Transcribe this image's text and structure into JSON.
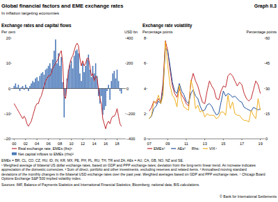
{
  "title": "Global financial factors and EME exchange rates",
  "graph_label": "Graph II.3",
  "subtitle": "In inflation targeting economies",
  "chart_data": [
    {
      "type": "line",
      "title": "Exchange rates and capital flows",
      "y_label": "Per cent",
      "y2_label": "USD bn",
      "grid": false,
      "x": [
        2000,
        2000.25,
        2000.5,
        2000.75,
        2001,
        2001.25,
        2001.5,
        2001.75,
        2002,
        2002.25,
        2002.5,
        2002.75,
        2003,
        2003.25,
        2003.5,
        2003.75,
        2004,
        2004.25,
        2004.5,
        2004.75,
        2005,
        2005.25,
        2005.5,
        2005.75,
        2006,
        2006.25,
        2006.5,
        2006.75,
        2007,
        2007.25,
        2007.5,
        2007.75,
        2008,
        2008.25,
        2008.5,
        2008.75,
        2009,
        2009.25,
        2009.5,
        2009.75,
        2010,
        2010.25,
        2010.5,
        2010.75,
        2011,
        2011.25,
        2011.5,
        2011.75,
        2012,
        2012.25,
        2012.5,
        2012.75,
        2013,
        2013.25,
        2013.5,
        2013.75,
        2014,
        2014.25,
        2014.5,
        2014.75,
        2015,
        2015.25,
        2015.5,
        2015.75,
        2016,
        2016.25,
        2016.5,
        2016.75,
        2017,
        2017.25,
        2017.5,
        2017.75,
        2018,
        2018.25,
        2018.5,
        2018.75
      ],
      "xlim": [
        1999.6,
        2019.4
      ],
      "xticks": [
        {
          "value": 2000,
          "label": "00"
        },
        {
          "value": 2002,
          "label": "02"
        },
        {
          "value": 2004,
          "label": "04"
        },
        {
          "value": 2006,
          "label": "06"
        },
        {
          "value": 2008,
          "label": "08"
        },
        {
          "value": 2010,
          "label": "10"
        },
        {
          "value": 2012,
          "label": "12"
        },
        {
          "value": 2014,
          "label": "14"
        },
        {
          "value": 2016,
          "label": "16"
        },
        {
          "value": 2018,
          "label": "18"
        }
      ],
      "ylim": [
        -20,
        20
      ],
      "yticks": [
        {
          "value": -20,
          "label": "–20"
        },
        {
          "value": -10,
          "label": "–10"
        },
        0,
        10,
        20
      ],
      "y2lim": [
        -400,
        400
      ],
      "y2ticks": [
        {
          "value": -400,
          "label": "–400"
        },
        {
          "value": -200,
          "label": "–200"
        },
        0,
        200,
        400
      ],
      "series": [
        {
          "name": "Real exchange rate, EMEs (lhs)¹",
          "type": "line",
          "axis": "y",
          "color": "#c1272d",
          "values": [
            -6,
            -7,
            -8,
            -9,
            -10,
            -11,
            -12,
            -11,
            -12,
            -14,
            -15,
            -14,
            -13,
            -11,
            -9,
            -7,
            -6,
            -6,
            -4,
            -3,
            -1,
            1,
            3,
            4,
            5,
            5,
            6,
            8,
            9,
            10,
            11,
            12,
            14,
            15,
            10,
            -3,
            -4,
            2,
            7,
            10,
            12,
            13,
            15,
            17,
            18,
            17,
            12,
            9,
            11,
            9,
            10,
            12,
            12,
            9,
            5,
            6,
            3,
            5,
            4,
            0,
            -4,
            -6,
            -12,
            -14,
            -16,
            -14,
            -13,
            -14,
            -12,
            -11,
            -11,
            -10,
            -8,
            -11,
            -14,
            -15
          ]
        },
        {
          "name": "Net capital inflows to EMEs (rhs)²",
          "type": "bar",
          "axis": "y2",
          "color": "#4a78b8",
          "values": [
            20,
            40,
            10,
            30,
            -20,
            10,
            20,
            -10,
            30,
            10,
            -20,
            20,
            40,
            60,
            50,
            80,
            90,
            60,
            100,
            120,
            130,
            110,
            150,
            160,
            180,
            200,
            160,
            230,
            300,
            390,
            200,
            280,
            180,
            250,
            50,
            -230,
            -60,
            80,
            150,
            190,
            220,
            160,
            260,
            300,
            310,
            280,
            120,
            60,
            200,
            130,
            180,
            230,
            270,
            150,
            90,
            180,
            120,
            200,
            100,
            -60,
            -120,
            -60,
            -210,
            -170,
            -140,
            -20,
            30,
            -90,
            60,
            120,
            140,
            80,
            150,
            60,
            -20,
            -40
          ]
        }
      ]
    },
    {
      "type": "line",
      "title": "Exchange rate volatility",
      "y_label": "Percentage points",
      "y2_label": "Percentage points",
      "grid": false,
      "x": [
        2007,
        2007.25,
        2007.5,
        2007.75,
        2008,
        2008.25,
        2008.5,
        2008.75,
        2009,
        2009.25,
        2009.5,
        2009.75,
        2010,
        2010.25,
        2010.5,
        2010.75,
        2011,
        2011.25,
        2011.5,
        2011.75,
        2012,
        2012.25,
        2012.5,
        2012.75,
        2013,
        2013.25,
        2013.5,
        2013.75,
        2014,
        2014.25,
        2014.5,
        2014.75,
        2015,
        2015.25,
        2015.5,
        2015.75,
        2016,
        2016.25,
        2016.5,
        2016.75,
        2017,
        2017.25,
        2017.5,
        2017.75,
        2018,
        2018.25,
        2018.5,
        2018.75,
        2019
      ],
      "xlim": [
        2006.8,
        2019.4
      ],
      "xticks": [
        {
          "value": 2007,
          "label": "07"
        },
        {
          "value": 2009,
          "label": "09"
        },
        {
          "value": 2011,
          "label": "11"
        },
        {
          "value": 2013,
          "label": "13"
        },
        {
          "value": 2015,
          "label": "15"
        },
        {
          "value": 2017,
          "label": "17"
        },
        {
          "value": 2019,
          "label": "19"
        }
      ],
      "ylim": [
        0,
        8
      ],
      "yticks": [
        0,
        2,
        4,
        6,
        8
      ],
      "y2lim": [
        0,
        60
      ],
      "y2ticks": [
        0,
        15,
        30,
        45,
        60
      ],
      "series": [
        {
          "name": "EMEs³",
          "type": "line",
          "axis": "y",
          "color": "#c1272d",
          "values": [
            2.2,
            2.5,
            3.0,
            2.8,
            3.2,
            2.9,
            4.5,
            7.8,
            7.0,
            5.5,
            4.2,
            3.6,
            3.3,
            4.0,
            3.5,
            3.2,
            2.8,
            2.6,
            4.5,
            5.2,
            4.6,
            4.2,
            3.5,
            2.9,
            2.8,
            3.8,
            4.6,
            4.2,
            3.9,
            3.2,
            3.1,
            3.8,
            4.2,
            4.1,
            5.0,
            5.2,
            5.0,
            4.6,
            4.2,
            4.5,
            4.3,
            3.6,
            3.2,
            3.0,
            3.2,
            3.9,
            4.6,
            4.3,
            3.6
          ]
        },
        {
          "name": "AEs³",
          "type": "line",
          "axis": "y",
          "color": "#1f4e9c",
          "values": [
            1.6,
            1.8,
            2.4,
            2.6,
            3.0,
            2.8,
            4.0,
            7.2,
            7.0,
            5.8,
            4.5,
            3.8,
            3.6,
            4.4,
            3.8,
            3.5,
            3.0,
            2.8,
            3.6,
            3.9,
            3.4,
            3.2,
            2.6,
            2.2,
            2.3,
            2.7,
            2.8,
            2.6,
            2.2,
            1.9,
            2.0,
            2.9,
            3.8,
            3.4,
            3.6,
            3.5,
            3.3,
            3.4,
            3.2,
            3.0,
            2.9,
            2.5,
            2.4,
            2.3,
            2.2,
            2.5,
            2.4,
            2.3,
            2.4
          ]
        },
        {
          "name": "VIX⁴",
          "legend_prefix": "Rhs:",
          "type": "line",
          "axis": "y2",
          "color": "#f0ad1c",
          "values": [
            12,
            14,
            22,
            22,
            26,
            21,
            26,
            58,
            44,
            32,
            26,
            24,
            19,
            32,
            23,
            19,
            18,
            17,
            35,
            30,
            18,
            20,
            16,
            17,
            13,
            15,
            14,
            14,
            14,
            12,
            13,
            16,
            16,
            14,
            26,
            18,
            22,
            15,
            14,
            14,
            12,
            11,
            11,
            10,
            17,
            14,
            12,
            24,
            17
          ]
        }
      ]
    }
  ],
  "notes": [
    "EMEs = BR, CL, CO, CZ, HU, ID, IN, KR, MX, PE, PH, PL, RU, TH, TR and ZA; AEs = AU, CA, GB, NO, NZ and SE.",
    "¹ Weighted average of bilateral US dollar exchange rates, based on GDP and PPP exchange rates; deviation from the long-term linear trend. An increase indicates",
    "appreciation of the domestic currencies.  ² Sum of direct, portfolio and other investments, excluding reserves and related items.  ³ Annualised moving standard",
    "deviations of the monthly changes in the bilateral USD exchange rates over the past year. Weighted averages based on GDP and PPP exchange rates.  ⁴ Chicago Board",
    "Options Exchange S&P 500 implied volatility index."
  ],
  "sources": "Sources: IMF, Balance of Payments Statistics and International Financial Statistics; Bloomberg; national data; BIS calculations.",
  "copyright": "© Bank for International Settlements"
}
